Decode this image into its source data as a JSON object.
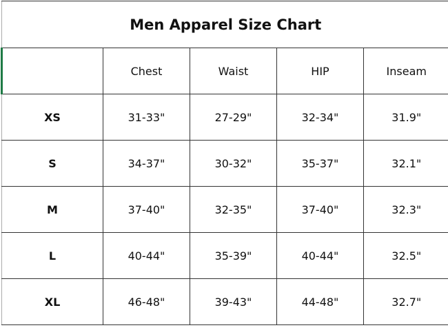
{
  "title": "Men Apparel Size Chart",
  "columns": [
    "",
    "Chest",
    "Waist",
    "HIP",
    "Inseam"
  ],
  "rows": [
    {
      "size": "XS",
      "chest": "31-33\"",
      "waist": "27-29\"",
      "hip": "32-34\"",
      "inseam": "31.9\""
    },
    {
      "size": "S",
      "chest": "34-37\"",
      "waist": "30-32\"",
      "hip": "35-37\"",
      "inseam": "32.1\""
    },
    {
      "size": "M",
      "chest": "37-40\"",
      "waist": "32-35\"",
      "hip": "37-40\"",
      "inseam": "32.3\""
    },
    {
      "size": "L",
      "chest": "40-44\"",
      "waist": "35-39\"",
      "hip": "40-44\"",
      "inseam": "32.5\""
    },
    {
      "size": "XL",
      "chest": "46-48\"",
      "waist": "39-43\"",
      "hip": "44-48\"",
      "inseam": "32.7\""
    }
  ],
  "colors": {
    "selection_marker": "#1e7a45",
    "border": "#333333"
  }
}
